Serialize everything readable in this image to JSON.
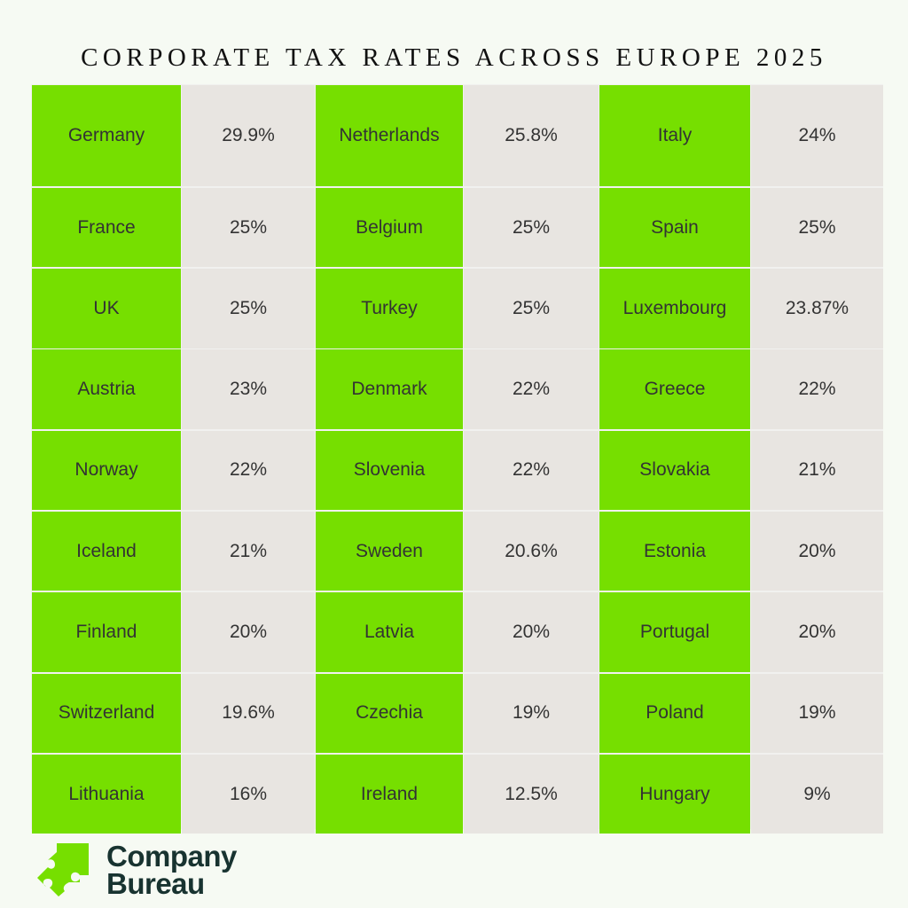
{
  "title": "CORPORATE TAX RATES ACROSS EUROPE 2025",
  "rows": [
    [
      {
        "country": "Germany",
        "rate": "29.9%"
      },
      {
        "country": "Netherlands",
        "rate": "25.8%"
      },
      {
        "country": "Italy",
        "rate": "24%"
      }
    ],
    [
      {
        "country": "France",
        "rate": "25%"
      },
      {
        "country": "Belgium",
        "rate": "25%"
      },
      {
        "country": "Spain",
        "rate": "25%"
      }
    ],
    [
      {
        "country": "UK",
        "rate": "25%"
      },
      {
        "country": "Turkey",
        "rate": "25%"
      },
      {
        "country": "Luxembourg",
        "rate": "23.87%"
      }
    ],
    [
      {
        "country": "Austria",
        "rate": "23%"
      },
      {
        "country": "Denmark",
        "rate": "22%"
      },
      {
        "country": "Greece",
        "rate": "22%"
      }
    ],
    [
      {
        "country": "Norway",
        "rate": "22%"
      },
      {
        "country": "Slovenia",
        "rate": "22%"
      },
      {
        "country": "Slovakia",
        "rate": "21%"
      }
    ],
    [
      {
        "country": "Iceland",
        "rate": "21%"
      },
      {
        "country": "Sweden",
        "rate": "20.6%"
      },
      {
        "country": "Estonia",
        "rate": "20%"
      }
    ],
    [
      {
        "country": "Finland",
        "rate": "20%"
      },
      {
        "country": "Latvia",
        "rate": "20%"
      },
      {
        "country": "Portugal",
        "rate": "20%"
      }
    ],
    [
      {
        "country": "Switzerland",
        "rate": "19.6%"
      },
      {
        "country": "Czechia",
        "rate": "19%"
      },
      {
        "country": "Poland",
        "rate": "19%"
      }
    ],
    [
      {
        "country": "Lithuania",
        "rate": "16%"
      },
      {
        "country": "Ireland",
        "rate": "12.5%"
      },
      {
        "country": "Hungary",
        "rate": "9%"
      }
    ]
  ],
  "colors": {
    "country_cell": "#76df00",
    "rate_cell": "#e8e5e1",
    "logo_text": "#183330"
  },
  "logo": {
    "line1": "Company",
    "line2": "Bureau",
    "icon": "puzzle-piece-icon"
  }
}
